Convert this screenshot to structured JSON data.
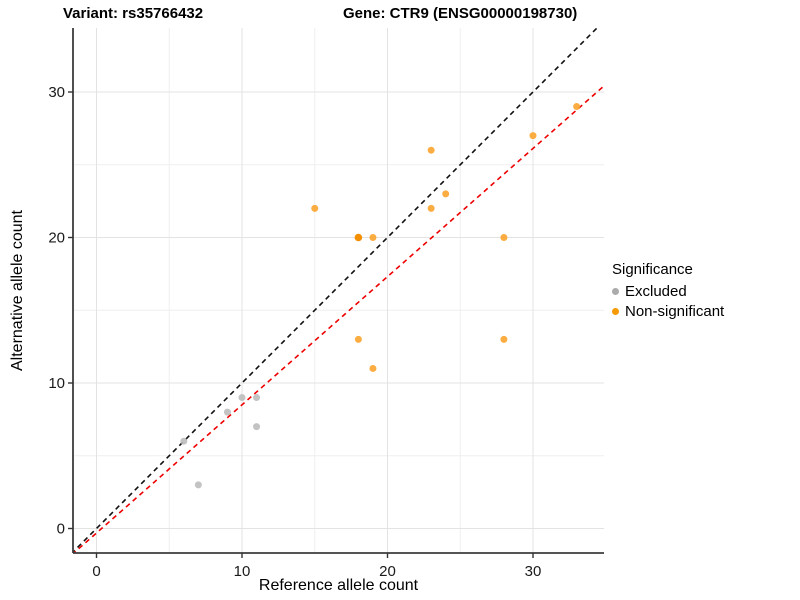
{
  "titles": {
    "variant": "Variant: rs35766432",
    "gene": "Gene: CTR9 (ENSG00000198730)"
  },
  "chart_data": {
    "type": "scatter",
    "xlabel": "Reference allele count",
    "ylabel": "Alternative allele count",
    "xticks": [
      0,
      10,
      20,
      30
    ],
    "yticks": [
      0,
      10,
      20,
      30
    ],
    "minor_ticks": [
      5,
      15,
      25,
      35
    ],
    "xlim": [
      -1.7,
      34.9
    ],
    "ylim": [
      -1.7,
      34.4
    ],
    "grid": "major-and-minor",
    "series": [
      {
        "name": "Excluded",
        "color": "#BDBDBD",
        "points": [
          [
            6,
            6
          ],
          [
            7,
            3
          ],
          [
            9,
            8
          ],
          [
            10,
            9
          ],
          [
            11,
            9
          ],
          [
            11,
            7
          ]
        ]
      },
      {
        "name": "Non-significant",
        "color": "#FBA42C",
        "points": [
          [
            15,
            22
          ],
          [
            18,
            20
          ],
          [
            19,
            20
          ],
          [
            18,
            13
          ],
          [
            19,
            11
          ],
          [
            23,
            26
          ],
          [
            23,
            22
          ],
          [
            24,
            23
          ],
          [
            28,
            20
          ],
          [
            28,
            13
          ],
          [
            30,
            27
          ],
          [
            33,
            29
          ]
        ],
        "darker_points": [
          [
            18,
            20
          ]
        ],
        "darker_color": "#F28D00"
      }
    ],
    "lines": [
      {
        "name": "identity-line",
        "color": "#111111",
        "dash": "5,4",
        "slope": 1,
        "intercept": 0
      },
      {
        "name": "fit-line",
        "color": "#EE0000",
        "dash": "5,4",
        "slope": 0.881,
        "intercept": -0.31
      }
    ],
    "legend": {
      "title": "Significance",
      "entries": [
        {
          "label": "Excluded",
          "color": "#ABABAB"
        },
        {
          "label": "Non-significant",
          "color": "#F59A00"
        }
      ]
    }
  }
}
